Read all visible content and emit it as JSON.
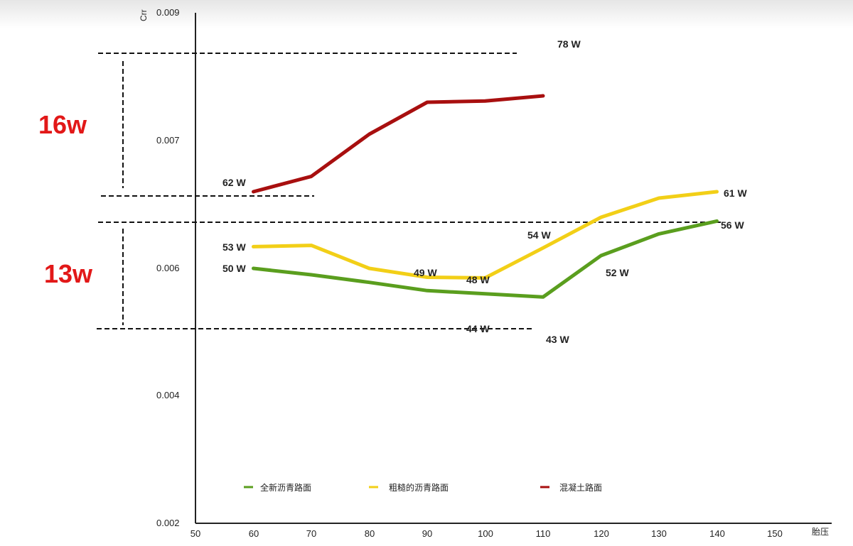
{
  "chart_data": {
    "type": "line",
    "ylabel": "Crr",
    "xlabel": "胎压",
    "xlim": [
      50,
      150
    ],
    "ylim": [
      0.002,
      0.009
    ],
    "x_ticks": [
      "50",
      "60",
      "70",
      "80",
      "90",
      "100",
      "110",
      "120",
      "130",
      "140",
      "150"
    ],
    "y_ticks": [
      "0.009",
      "0.007",
      "0.006",
      "0.004",
      "0.002"
    ],
    "grid": false,
    "legend_position": "bottom",
    "series": [
      {
        "name": "混凝土路面",
        "color": "#a80f0f",
        "x": [
          60,
          70,
          80,
          90,
          100,
          110
        ],
        "y": [
          0.0066,
          0.00672,
          0.0071,
          0.0076,
          0.00762,
          0.0077
        ]
      },
      {
        "name": "粗糙的沥青路面",
        "color": "#f2cf17",
        "x": [
          60,
          70,
          80,
          90,
          100,
          110,
          120,
          130,
          140
        ],
        "y": [
          0.00617,
          0.00618,
          0.006,
          0.00586,
          0.00585,
          0.00616,
          0.0064,
          0.00655,
          0.0066
        ]
      },
      {
        "name": "全新沥青路面",
        "color": "#5a9e1e",
        "x": [
          60,
          70,
          80,
          90,
          100,
          110,
          120,
          130,
          140
        ],
        "y": [
          0.006,
          0.0059,
          0.00578,
          0.00565,
          0.0056,
          0.00555,
          0.0061,
          0.00627,
          0.00637
        ]
      }
    ],
    "data_labels": [
      {
        "text": "78 W",
        "series": "混凝土路面",
        "x": 110
      },
      {
        "text": "62 W",
        "series": "混凝土路面",
        "x": 60
      },
      {
        "text": "53 W",
        "series": "粗糙的沥青路面",
        "x": 60
      },
      {
        "text": "49 W",
        "series": "粗糙的沥青路面",
        "x": 90
      },
      {
        "text": "48 W",
        "series": "粗糙的沥青路面",
        "x": 100
      },
      {
        "text": "54 W",
        "series": "粗糙的沥青路面",
        "x": 110
      },
      {
        "text": "61 W",
        "series": "粗糙的沥青路面",
        "x": 140
      },
      {
        "text": "50 W",
        "series": "全新沥青路面",
        "x": 60
      },
      {
        "text": "44 W",
        "series": "全新沥青路面",
        "x": 100
      },
      {
        "text": "43 W",
        "series": "全新沥青路面",
        "x": 110
      },
      {
        "text": "52 W",
        "series": "全新沥青路面",
        "x": 120
      },
      {
        "text": "56 W",
        "series": "全新沥青路面",
        "x": 140
      }
    ],
    "annotations": [
      {
        "text": "16w",
        "color": "#e21818"
      },
      {
        "text": "13w",
        "color": "#e21818"
      }
    ]
  }
}
